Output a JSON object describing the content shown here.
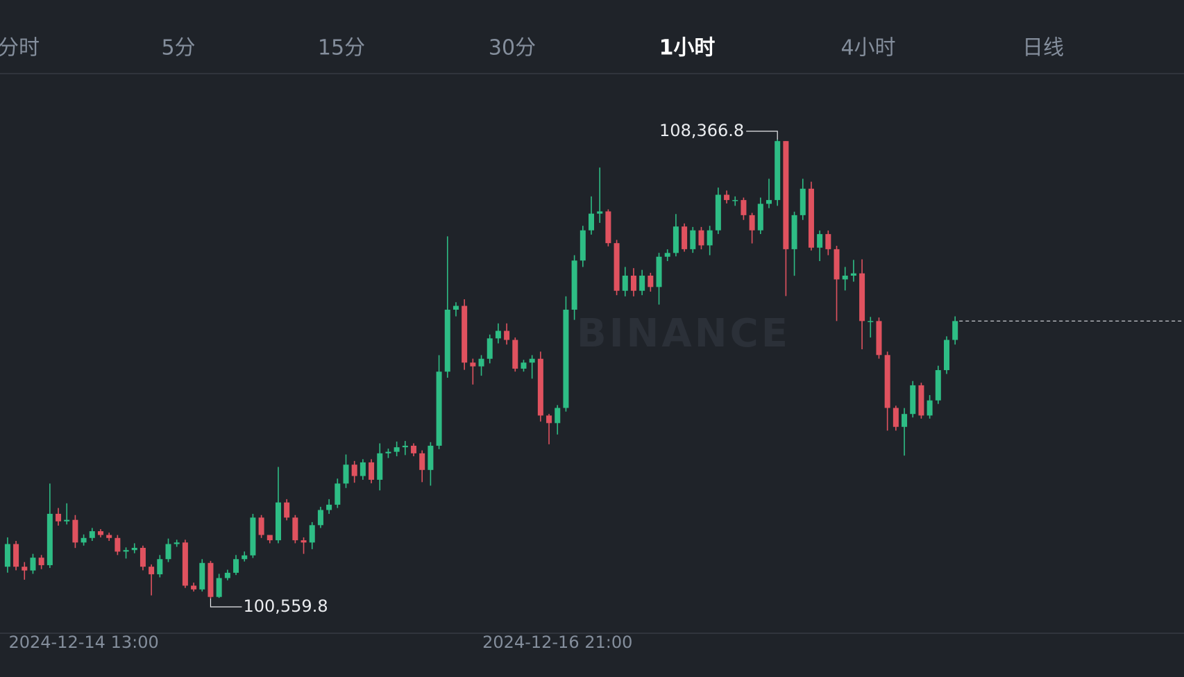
{
  "tabs": [
    {
      "label": "分时"
    },
    {
      "label": "5分"
    },
    {
      "label": "15分"
    },
    {
      "label": "30分"
    },
    {
      "label": "1小时",
      "active": true
    },
    {
      "label": "4小时"
    },
    {
      "label": "日线"
    }
  ],
  "chart_data": {
    "type": "candlestick",
    "watermark": "BINANCE",
    "up_color": "#2ebd85",
    "down_color": "#e0525f",
    "categories": [
      null,
      null,
      null,
      null,
      null,
      null,
      null,
      null,
      null,
      "2024-12-14 13:00",
      null,
      null,
      null,
      null,
      null,
      null,
      null,
      null,
      null,
      null,
      null,
      null,
      null,
      null,
      null,
      null,
      null,
      null,
      null,
      null,
      null,
      null,
      null,
      null,
      null,
      null,
      null,
      null,
      null,
      null,
      null,
      null,
      null,
      null,
      null,
      null,
      null,
      null,
      null,
      null,
      null,
      null,
      null,
      null,
      null,
      null,
      null,
      null,
      null,
      null,
      null,
      null,
      null,
      null,
      null,
      "2024-12-16 21:00",
      null,
      null,
      null,
      null,
      null,
      null,
      null,
      null,
      null,
      null,
      null,
      null,
      null,
      null,
      null,
      null,
      null,
      null,
      null,
      null,
      null,
      null,
      null,
      null,
      null,
      null,
      null,
      null,
      null,
      null,
      null,
      null,
      null,
      null,
      null,
      null,
      null,
      null,
      null,
      null,
      null,
      null,
      null,
      null,
      null,
      null,
      null
    ],
    "open": [
      101101,
      101487,
      101101,
      101037,
      101255,
      101127,
      102001,
      101873,
      101898,
      101513,
      101590,
      101705,
      101641,
      101590,
      101358,
      101384,
      101422,
      101101,
      100972,
      101230,
      101487,
      101513,
      100779,
      100715,
      101165,
      100587,
      100908,
      100998,
      101230,
      101294,
      101937,
      101641,
      101551,
      102194,
      101937,
      101551,
      101513,
      101808,
      102066,
      102156,
      102516,
      102837,
      102644,
      102876,
      102580,
      103030,
      103056,
      103133,
      103159,
      103030,
      102747,
      103159,
      104419,
      105473,
      105538,
      104573,
      104509,
      104638,
      104985,
      105113,
      104959,
      104470,
      104573,
      104638,
      103673,
      103544,
      103802,
      105473,
      106309,
      106823,
      107107,
      107145,
      106605,
      105795,
      106052,
      105795,
      106052,
      105859,
      106374,
      106438,
      106888,
      106502,
      106823,
      106567,
      106823,
      107428,
      107338,
      107338,
      107081,
      106823,
      107274,
      107338,
      108341,
      106502,
      107081,
      107531,
      106528,
      106759,
      106502,
      105988,
      106052,
      106091,
      105280,
      105280,
      104702,
      103802,
      103480,
      103699,
      104187,
      103673,
      103930,
      104445,
      104959
    ],
    "high": [
      101600,
      101540,
      101180,
      101320,
      101300,
      102516,
      102100,
      102180,
      101980,
      101650,
      101760,
      101740,
      101680,
      101640,
      101430,
      101500,
      101460,
      101140,
      101300,
      101580,
      101560,
      101560,
      100830,
      101230,
      101200,
      100980,
      101050,
      101300,
      101360,
      102000,
      101980,
      101600,
      102798,
      102250,
      101980,
      101600,
      101860,
      102120,
      102250,
      102600,
      103010,
      102900,
      102930,
      102930,
      103200,
      103110,
      103230,
      103240,
      103200,
      103080,
      103220,
      104700,
      106721,
      105600,
      105650,
      104640,
      104700,
      105050,
      105240,
      105240,
      105000,
      104620,
      104700,
      104760,
      103700,
      103850,
      105700,
      106400,
      106900,
      107400,
      107891,
      107180,
      106660,
      106200,
      106180,
      106150,
      106100,
      106440,
      106500,
      107100,
      106940,
      106880,
      106880,
      106900,
      107550,
      107500,
      107400,
      107380,
      107120,
      107380,
      107700,
      108366.8,
      108341,
      107140,
      107700,
      107650,
      106820,
      106820,
      106560,
      106200,
      106320,
      106330,
      105350,
      105340,
      104760,
      103840,
      103800,
      104260,
      104230,
      104020,
      104520,
      105020,
      105360
    ],
    "low": [
      101000,
      101040,
      100880,
      100980,
      101060,
      101080,
      101800,
      101820,
      101420,
      101460,
      101540,
      101600,
      101540,
      101300,
      101240,
      101330,
      101040,
      100613,
      100920,
      101180,
      101440,
      100740,
      100680,
      100680,
      100559.8,
      100570,
      100870,
      100960,
      101190,
      101250,
      101590,
      101500,
      101500,
      101890,
      101500,
      101320,
      101400,
      101760,
      102000,
      102100,
      102440,
      102530,
      102580,
      102520,
      102400,
      102950,
      102980,
      103000,
      102980,
      102540,
      102480,
      103100,
      104316,
      105360,
      104450,
      104200,
      104350,
      104560,
      104900,
      104880,
      104420,
      104420,
      104300,
      103570,
      103184,
      103350,
      103740,
      105300,
      106200,
      106750,
      106950,
      106550,
      105720,
      105700,
      105700,
      105720,
      105780,
      105560,
      106300,
      106380,
      106460,
      106440,
      106500,
      106400,
      106760,
      107280,
      107240,
      107000,
      106600,
      106760,
      107200,
      107240,
      105705,
      106050,
      107000,
      106480,
      106300,
      106400,
      105280,
      105800,
      105950,
      104800,
      105000,
      104640,
      103416,
      103416,
      102991,
      103640,
      103620,
      103620,
      103870,
      104380,
      104880
    ],
    "close": [
      101487,
      101101,
      101037,
      101255,
      101127,
      102001,
      101873,
      101898,
      101513,
      101590,
      101705,
      101641,
      101590,
      101358,
      101384,
      101422,
      101101,
      100972,
      101230,
      101487,
      101513,
      100779,
      100715,
      101165,
      100587,
      100908,
      100998,
      101230,
      101294,
      101937,
      101641,
      101551,
      102194,
      101937,
      101551,
      101513,
      101808,
      102066,
      102156,
      102516,
      102837,
      102644,
      102876,
      102580,
      103030,
      103056,
      103133,
      103159,
      103030,
      102747,
      103159,
      104419,
      105473,
      105538,
      104573,
      104509,
      104638,
      104985,
      105113,
      104959,
      104470,
      104573,
      104638,
      103673,
      103544,
      103802,
      105473,
      106309,
      106823,
      107107,
      107145,
      106605,
      105795,
      106052,
      105795,
      106052,
      105859,
      106374,
      106438,
      106888,
      106502,
      106823,
      106567,
      106823,
      107428,
      107338,
      107338,
      107081,
      106823,
      107274,
      107338,
      108341,
      106502,
      107081,
      107531,
      106528,
      106759,
      106502,
      105988,
      106052,
      106091,
      105280,
      105280,
      104702,
      103802,
      103480,
      103699,
      104187,
      103673,
      103930,
      104445,
      104959,
      105280
    ],
    "annotations": [
      {
        "value": 108366.8,
        "label": "108,366.8",
        "at": "high"
      },
      {
        "value": 100559.8,
        "label": "100,559.8",
        "at": "low"
      }
    ]
  }
}
